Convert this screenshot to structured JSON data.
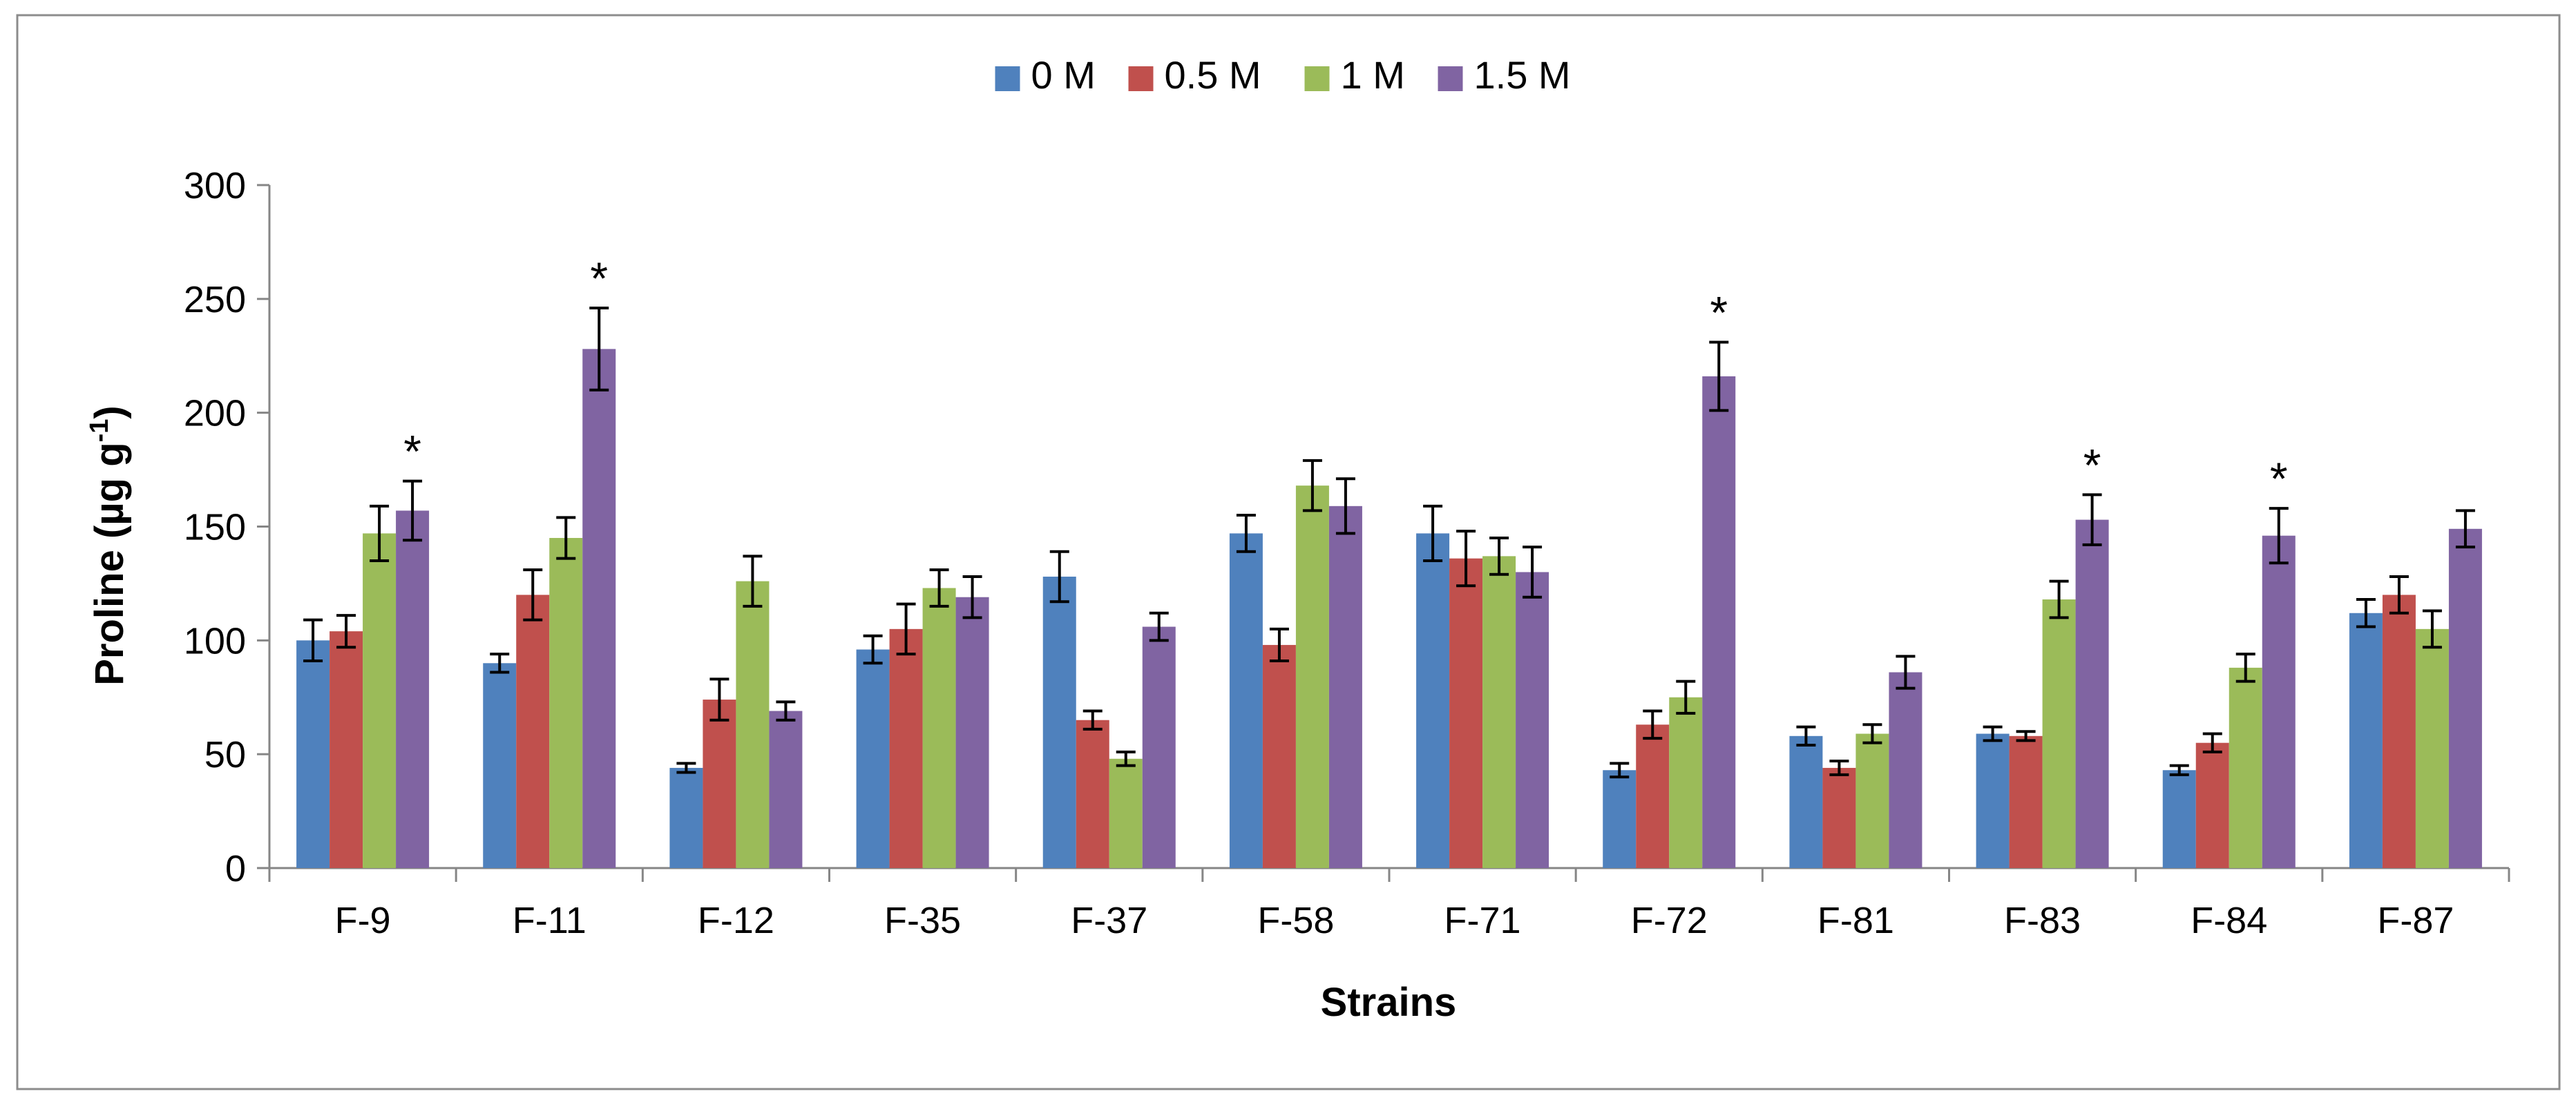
{
  "chart_data": {
    "type": "bar",
    "title": "",
    "xlabel": "Strains",
    "ylabel": "Proline (µg g-1)",
    "ylabel_parts": {
      "main": "Proline (µg g",
      "sup": "-1",
      "close": ")"
    },
    "ylim": [
      0,
      300
    ],
    "yticks": [
      0,
      50,
      100,
      150,
      200,
      250,
      300
    ],
    "legend_position": "top-center",
    "categories": [
      "F-9",
      "F-11",
      "F-12",
      "F-35",
      "F-37",
      "F-58",
      "F-71",
      "F-72",
      "F-81",
      "F-83",
      "F-84",
      "F-87"
    ],
    "series": [
      {
        "name": "0 M",
        "color": "#4F81BD",
        "values": [
          100,
          90,
          44,
          96,
          128,
          147,
          147,
          43,
          58,
          59,
          43,
          112
        ],
        "errors": [
          9,
          4,
          2,
          6,
          11,
          8,
          12,
          3,
          4,
          3,
          2,
          6
        ]
      },
      {
        "name": "0.5 M",
        "color": "#C0504D",
        "values": [
          104,
          120,
          74,
          105,
          65,
          98,
          136,
          63,
          44,
          58,
          55,
          120
        ],
        "errors": [
          7,
          11,
          9,
          11,
          4,
          7,
          12,
          6,
          3,
          2,
          4,
          8
        ]
      },
      {
        "name": "1 M",
        "color": "#9BBB59",
        "values": [
          147,
          145,
          126,
          123,
          48,
          168,
          137,
          75,
          59,
          118,
          88,
          105
        ],
        "errors": [
          12,
          9,
          11,
          8,
          3,
          11,
          8,
          7,
          4,
          8,
          6,
          8
        ]
      },
      {
        "name": "1.5 M",
        "color": "#8064A2",
        "values": [
          157,
          228,
          69,
          119,
          106,
          159,
          130,
          216,
          86,
          153,
          146,
          149
        ],
        "errors": [
          13,
          18,
          4,
          9,
          6,
          12,
          11,
          15,
          7,
          11,
          12,
          8
        ]
      }
    ],
    "annotations": [
      {
        "category": "F-9",
        "series": "1.5 M",
        "text": "*"
      },
      {
        "category": "F-11",
        "series": "1.5 M",
        "text": "*"
      },
      {
        "category": "F-72",
        "series": "1.5 M",
        "text": "*"
      },
      {
        "category": "F-83",
        "series": "1.5 M",
        "text": "*"
      },
      {
        "category": "F-84",
        "series": "1.5 M",
        "text": "*"
      }
    ]
  }
}
